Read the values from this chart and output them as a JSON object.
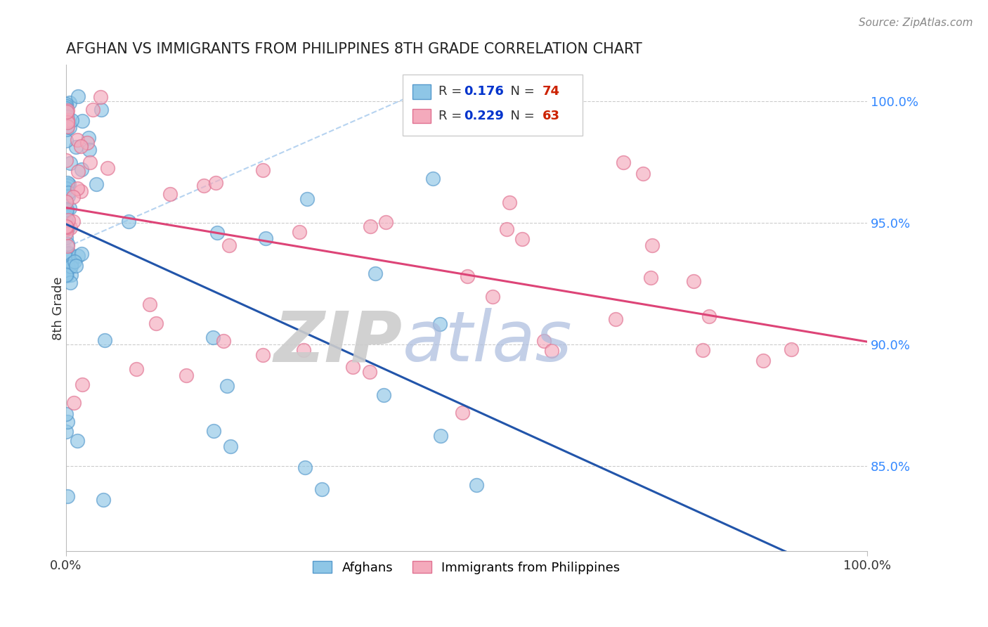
{
  "title": "AFGHAN VS IMMIGRANTS FROM PHILIPPINES 8TH GRADE CORRELATION CHART",
  "source_text": "Source: ZipAtlas.com",
  "ylabel": "8th Grade",
  "right_yticks": [
    0.85,
    0.9,
    0.95,
    1.0
  ],
  "right_yticklabels": [
    "85.0%",
    "90.0%",
    "95.0%",
    "100.0%"
  ],
  "xlim": [
    0.0,
    1.0
  ],
  "ylim": [
    0.815,
    1.015
  ],
  "blue_R": 0.176,
  "blue_N": 74,
  "pink_R": 0.229,
  "pink_N": 63,
  "blue_color": "#8ec6e6",
  "pink_color": "#f4aabc",
  "blue_edge": "#5599cc",
  "pink_edge": "#e07090",
  "trendline_blue": "#2255aa",
  "trendline_pink": "#dd4477",
  "identity_line_color": "#aaccee",
  "watermark_ZIP_color": "#cccccc",
  "watermark_atlas_color": "#aabbdd",
  "legend_R_color": "#0033cc",
  "legend_N_color": "#cc2200",
  "grid_color": "#cccccc",
  "background_color": "#ffffff",
  "title_color": "#222222",
  "source_color": "#888888"
}
